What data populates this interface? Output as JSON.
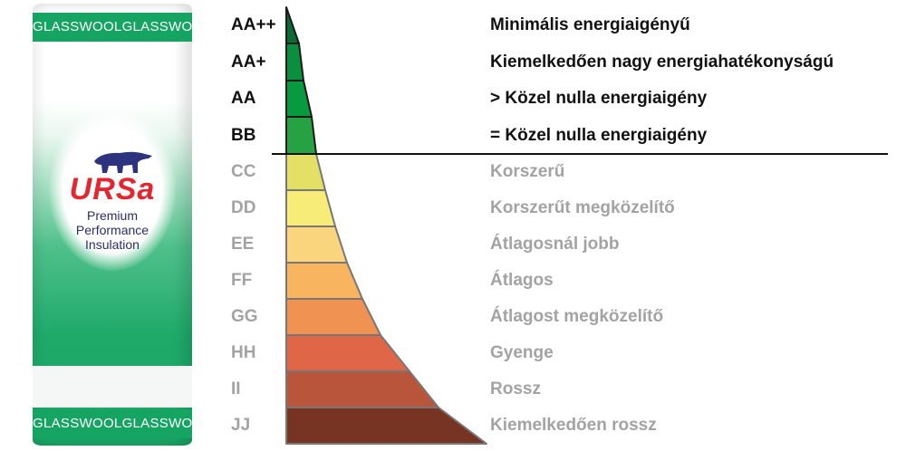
{
  "product": {
    "band_text": "GLASSWOOL",
    "brand": "URSa",
    "tagline": [
      "Premium",
      "Performance",
      "Insulation"
    ]
  },
  "scale": {
    "ratings": [
      {
        "code": "AA++",
        "label": "Minimális energiaigényű",
        "color": "#0b6b35",
        "tier": "dark"
      },
      {
        "code": "AA+",
        "label": "Kiemelkedően nagy energiahatékonyságú",
        "color": "#0a8f3f",
        "tier": "dark"
      },
      {
        "code": "AA",
        "label": "> Közel nulla energiaigény",
        "color": "#079a3e",
        "tier": "dark"
      },
      {
        "code": "BB",
        "label": "= Közel nulla energiaigény",
        "color": "#27a243",
        "tier": "dark"
      },
      {
        "code": "CC",
        "label": "Korszerű",
        "color": "#e4e066",
        "tier": "light"
      },
      {
        "code": "DD",
        "label": "Korszerűt megközelítő",
        "color": "#f8ec79",
        "tier": "light"
      },
      {
        "code": "EE",
        "label": "Átlagosnál jobb",
        "color": "#fbd57d",
        "tier": "light"
      },
      {
        "code": "FF",
        "label": "Átlagos",
        "color": "#f8b45e",
        "tier": "light"
      },
      {
        "code": "GG",
        "label": "Átlagost megközelítő",
        "color": "#f09252",
        "tier": "light"
      },
      {
        "code": "HH",
        "label": "Gyenge",
        "color": "#e06648",
        "tier": "light"
      },
      {
        "code": "II",
        "label": "Rossz",
        "color": "#b9553b",
        "tier": "light"
      },
      {
        "code": "JJ",
        "label": "Kiemelkedően rossz",
        "color": "#773422",
        "tier": "light"
      }
    ]
  }
}
